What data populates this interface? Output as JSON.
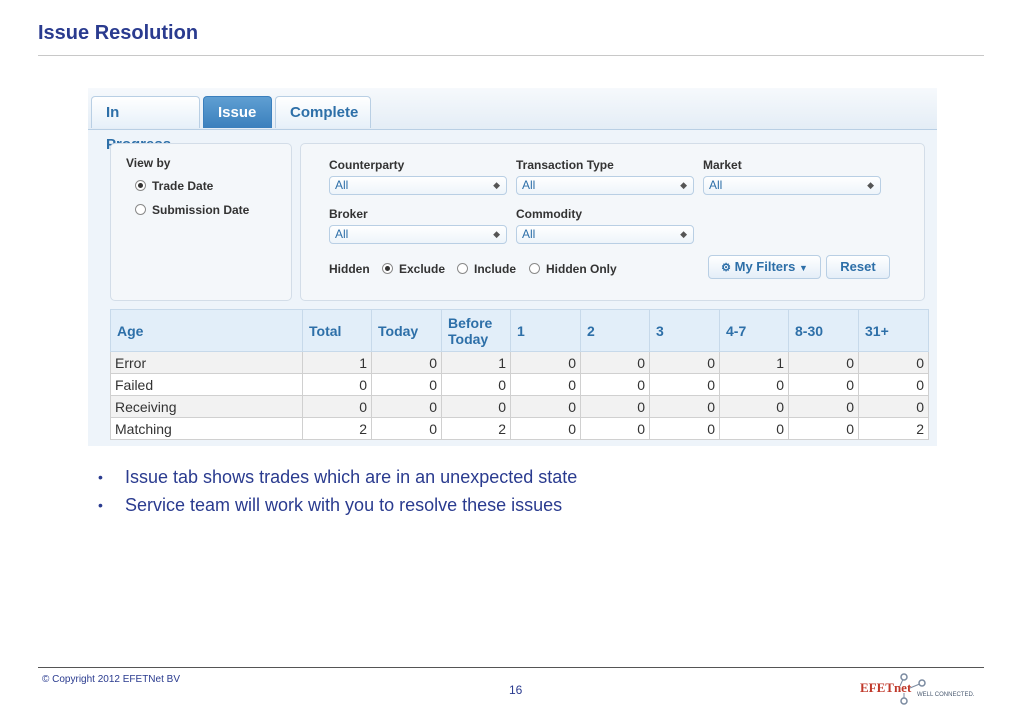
{
  "slide": {
    "title": "Issue Resolution",
    "bullets": [
      "Issue tab shows trades which are in an unexpected state",
      "Service team will work with you to resolve these issues"
    ],
    "copyright": "© Copyright 2012 EFETNet BV",
    "page_number": "16",
    "logo": {
      "wordmark": "EFETnet",
      "tagline": "WELL CONNECTED.",
      "colors": {
        "wordmark": "#c0392b",
        "nodes": "#7a8aa0"
      }
    }
  },
  "tabs": [
    {
      "label": "In Progress",
      "active": false
    },
    {
      "label": "Issue",
      "active": true
    },
    {
      "label": "Complete",
      "active": false
    }
  ],
  "view_by": {
    "label": "View by",
    "options": [
      {
        "label": "Trade Date",
        "selected": true
      },
      {
        "label": "Submission Date",
        "selected": false
      }
    ]
  },
  "filters": {
    "counterparty": {
      "label": "Counterparty",
      "value": "All"
    },
    "transaction_type": {
      "label": "Transaction Type",
      "value": "All"
    },
    "market": {
      "label": "Market",
      "value": "All"
    },
    "broker": {
      "label": "Broker",
      "value": "All"
    },
    "commodity": {
      "label": "Commodity",
      "value": "All"
    },
    "hidden": {
      "label": "Hidden",
      "options": [
        {
          "label": "Exclude",
          "selected": true
        },
        {
          "label": "Include",
          "selected": false
        },
        {
          "label": "Hidden Only",
          "selected": false
        }
      ]
    },
    "my_filters_label": "My Filters",
    "reset_label": "Reset"
  },
  "table": {
    "headers": [
      "Age",
      "Total",
      "Today",
      "Before Today",
      "1",
      "2",
      "3",
      "4-7",
      "8-30",
      "31+"
    ],
    "rows": [
      {
        "label": "Error",
        "values": [
          "1",
          "0",
          "1",
          "0",
          "0",
          "0",
          "1",
          "0",
          "0"
        ]
      },
      {
        "label": "Failed",
        "values": [
          "0",
          "0",
          "0",
          "0",
          "0",
          "0",
          "0",
          "0",
          "0"
        ]
      },
      {
        "label": "Receiving",
        "values": [
          "0",
          "0",
          "0",
          "0",
          "0",
          "0",
          "0",
          "0",
          "0"
        ]
      },
      {
        "label": "Matching",
        "values": [
          "2",
          "0",
          "2",
          "0",
          "0",
          "0",
          "0",
          "0",
          "2"
        ]
      }
    ]
  },
  "colors": {
    "accent": "#2d6fa8",
    "active_tab": "#3a7fbd",
    "title": "#2a3b8f"
  }
}
